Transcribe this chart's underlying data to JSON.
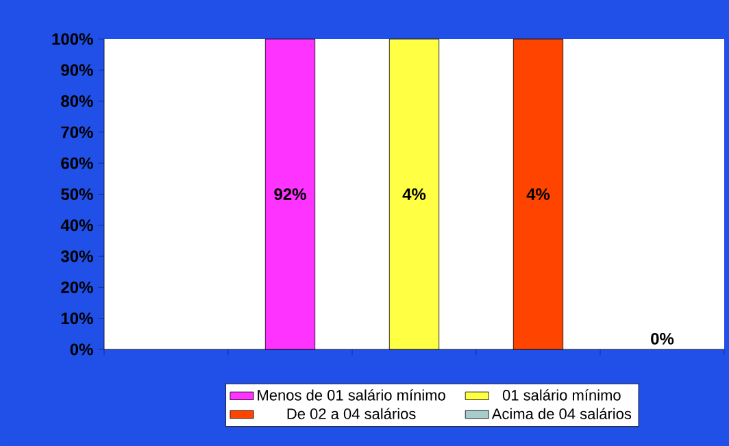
{
  "chart_data": {
    "type": "bar",
    "stacked": true,
    "categories": [
      null,
      null,
      null,
      null,
      null
    ],
    "series": [
      {
        "name": "Menos de 01 salário mínimo",
        "color": "#ff33ff",
        "values": [
          null,
          100,
          null,
          null,
          null
        ]
      },
      {
        "name": "01 salário mínimo",
        "color": "#ffff44",
        "values": [
          null,
          null,
          100,
          null,
          null
        ]
      },
      {
        "name": "De 02 a 04 salários",
        "color": "#ff4400",
        "values": [
          null,
          null,
          null,
          100,
          null
        ]
      },
      {
        "name": "Acima de 04 salários",
        "color": "#a8cccc",
        "values": [
          null,
          null,
          null,
          null,
          0
        ]
      }
    ],
    "annotations": [
      "92%",
      "4%",
      "4%",
      "0%"
    ],
    "ylim": [
      0,
      100
    ],
    "yticks": [
      {
        "value": 0,
        "label": "0%"
      },
      {
        "value": 10,
        "label": "10%"
      },
      {
        "value": 20,
        "label": "20%"
      },
      {
        "value": 30,
        "label": "30%"
      },
      {
        "value": 40,
        "label": "40%"
      },
      {
        "value": 50,
        "label": "50%"
      },
      {
        "value": 60,
        "label": "60%"
      },
      {
        "value": 70,
        "label": "70%"
      },
      {
        "value": 80,
        "label": "80%"
      },
      {
        "value": 90,
        "label": "90%"
      },
      {
        "value": 100,
        "label": "100%"
      }
    ],
    "tick_labels": "y",
    "grid": false,
    "legend": "bottom"
  }
}
